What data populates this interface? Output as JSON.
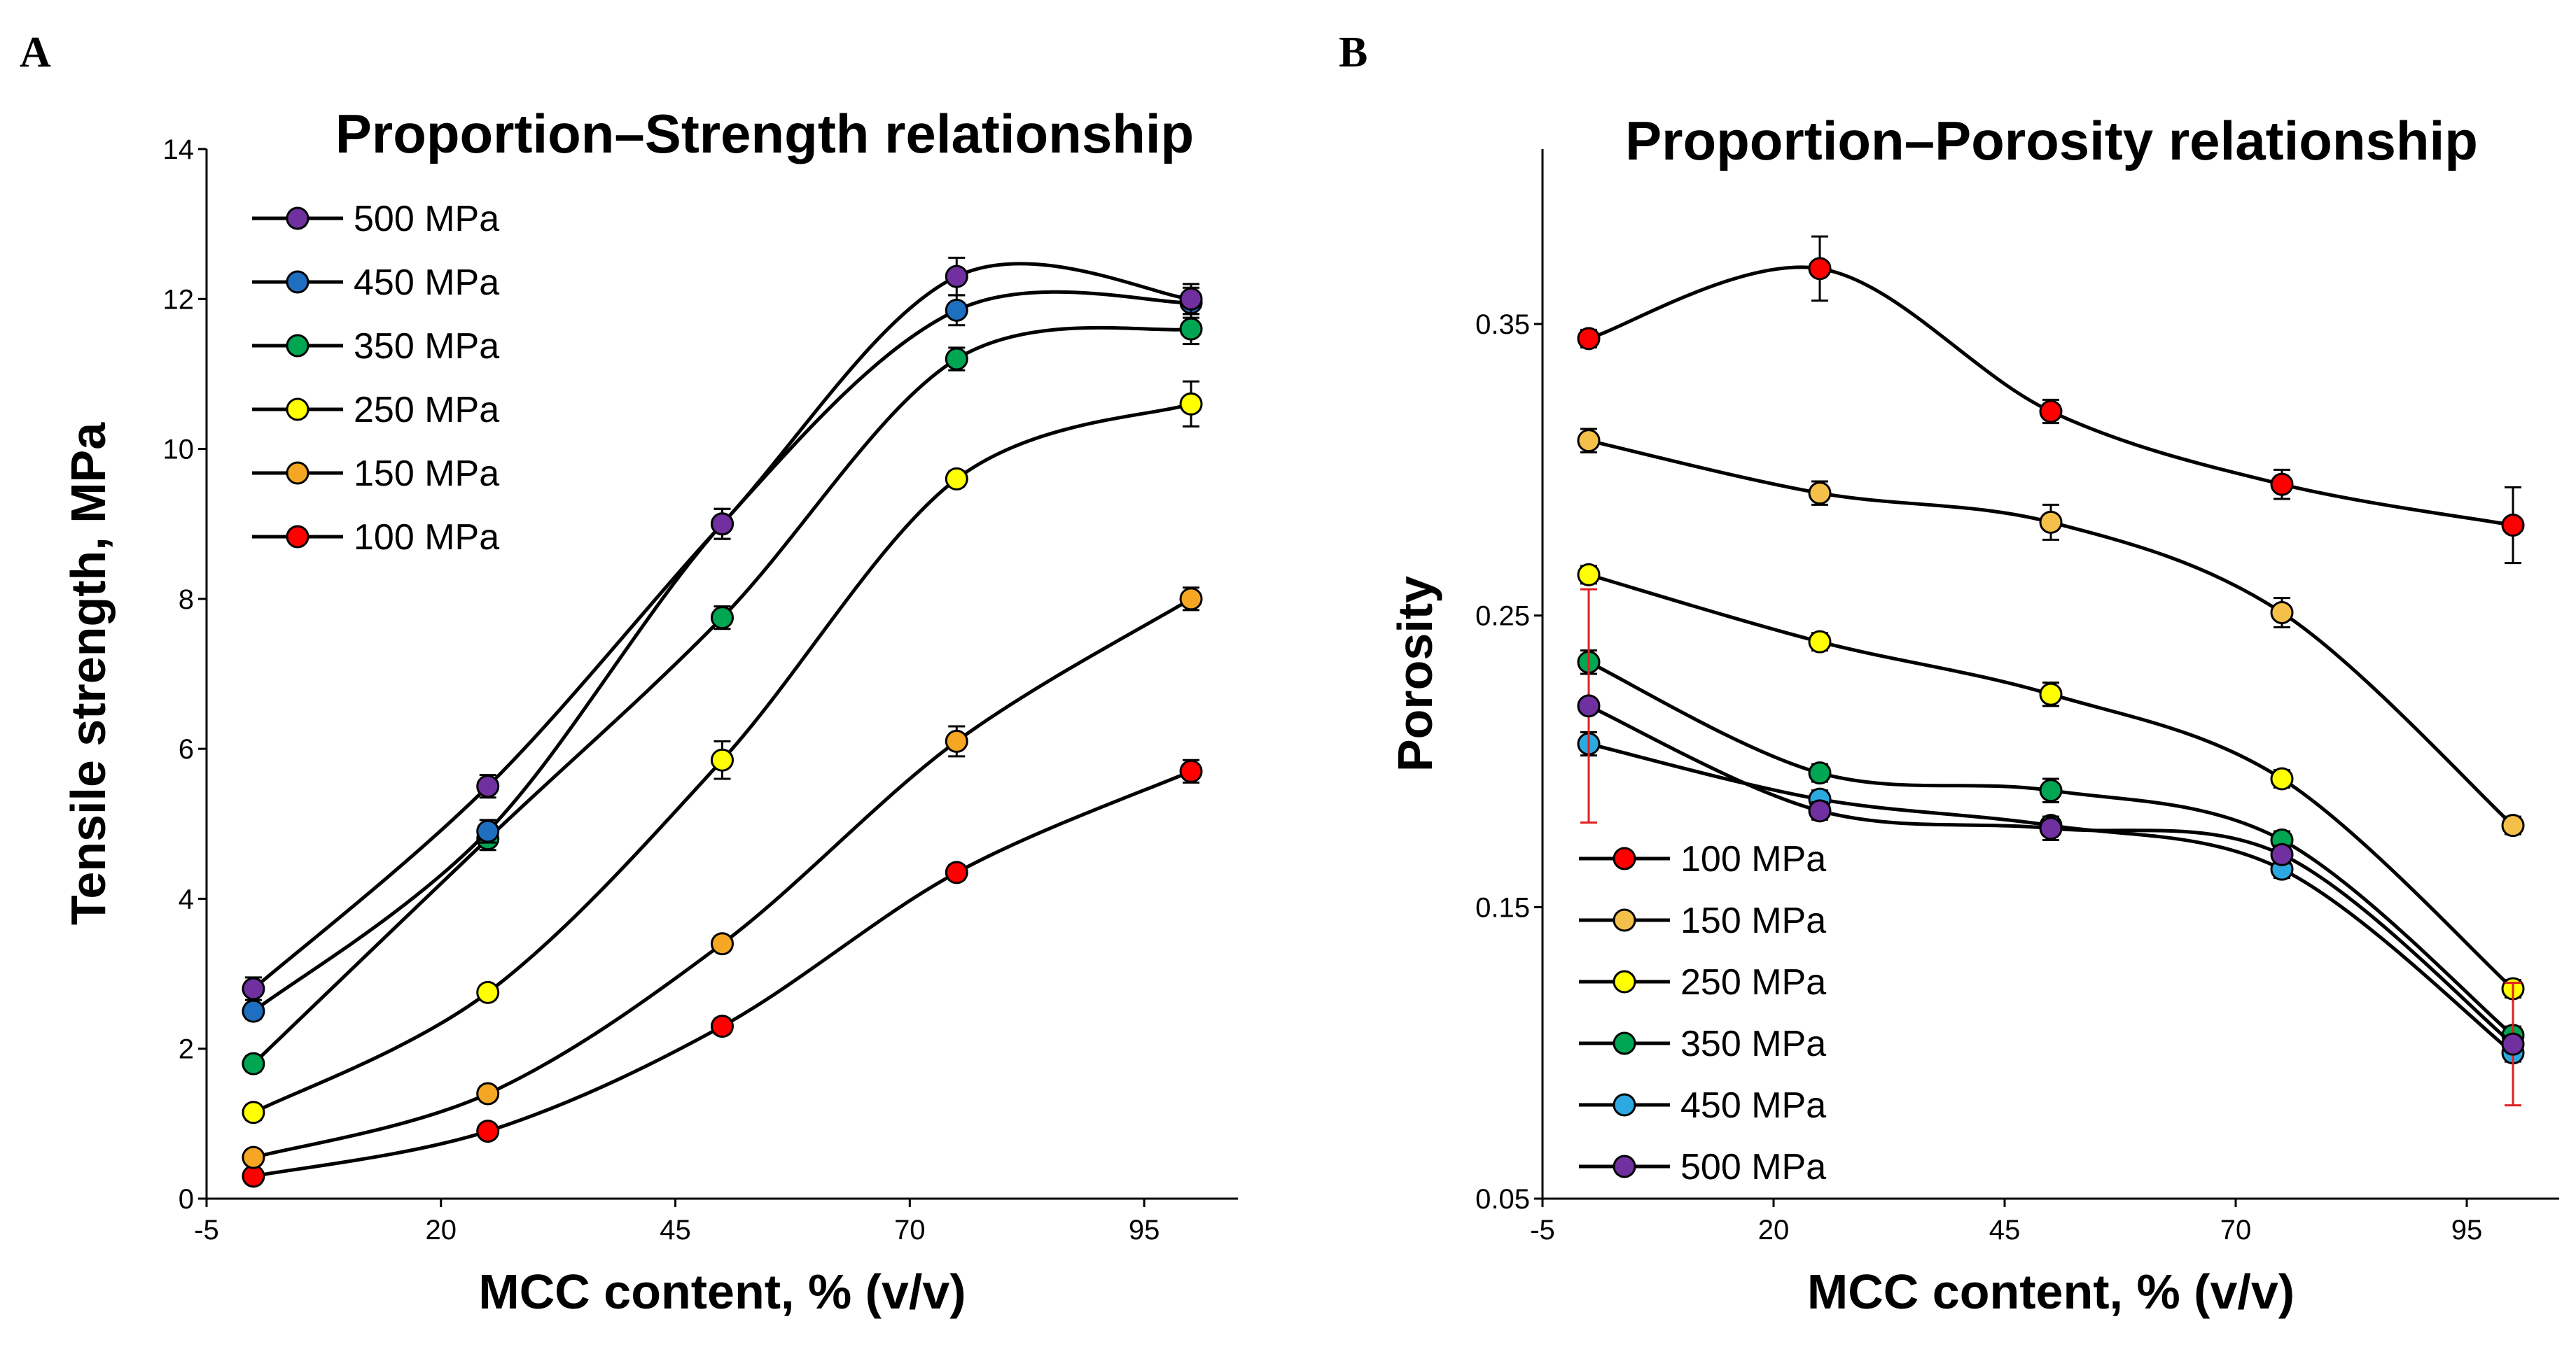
{
  "figure": {
    "panels": [
      "A",
      "B"
    ]
  },
  "chart_data": [
    {
      "type": "line",
      "panel": "A",
      "title": "Proportion–Strength  relationship",
      "xlabel": "MCC content, % (v/v)",
      "ylabel": "Tensile strength, MPa",
      "xlim": [
        -5,
        105
      ],
      "ylim": [
        0,
        14
      ],
      "xticks": [
        -5,
        20,
        45,
        70,
        95
      ],
      "yticks": [
        0,
        2,
        4,
        6,
        8,
        10,
        12,
        14
      ],
      "x": [
        0,
        25,
        50,
        75,
        100
      ],
      "legend_position": "top-left",
      "series": [
        {
          "name": "500 MPa",
          "color": "#7030A0",
          "values": [
            2.8,
            5.5,
            9.0,
            12.3,
            12.0
          ],
          "errors": [
            0.15,
            0.15,
            0.2,
            0.25,
            0.2
          ]
        },
        {
          "name": "450 MPa",
          "color": "#1F6FC1",
          "values": [
            2.5,
            4.9,
            9.0,
            11.85,
            11.95
          ],
          "errors": [
            0.1,
            0.15,
            0.2,
            0.2,
            0.2
          ]
        },
        {
          "name": "350 MPa",
          "color": "#00A651",
          "values": [
            1.8,
            4.8,
            7.75,
            11.2,
            11.6
          ],
          "errors": [
            0.1,
            0.15,
            0.15,
            0.15,
            0.2
          ]
        },
        {
          "name": "250 MPa",
          "color": "#FFFF00",
          "values": [
            1.15,
            2.75,
            5.85,
            9.6,
            10.6
          ],
          "errors": [
            0.1,
            0.1,
            0.25,
            0.1,
            0.3
          ]
        },
        {
          "name": "150 MPa",
          "color": "#F5A623",
          "values": [
            0.55,
            1.4,
            3.4,
            6.1,
            8.0
          ],
          "errors": [
            0.05,
            0.1,
            0.1,
            0.2,
            0.15
          ]
        },
        {
          "name": "100 MPa",
          "color": "#FF0000",
          "values": [
            0.3,
            0.9,
            2.3,
            4.35,
            5.7
          ],
          "errors": [
            0.05,
            0.05,
            0.1,
            0.1,
            0.15
          ]
        }
      ]
    },
    {
      "type": "line",
      "panel": "B",
      "title": "Proportion–Porosity  relationship",
      "xlabel": "MCC content, % (v/v)",
      "ylabel": "Porosity",
      "xlim": [
        -5,
        105
      ],
      "ylim": [
        0.05,
        0.41
      ],
      "xticks": [
        -5,
        20,
        45,
        70,
        95
      ],
      "yticks": [
        0.05,
        0.15,
        0.25,
        0.35
      ],
      "x": [
        0,
        25,
        50,
        75,
        100
      ],
      "legend_position": "bottom-left",
      "series": [
        {
          "name": "100 MPa",
          "color": "#FF0000",
          "values": [
            0.345,
            0.369,
            0.32,
            0.295,
            0.281
          ],
          "errors": [
            0.003,
            0.011,
            0.004,
            0.005,
            0.013
          ]
        },
        {
          "name": "150 MPa",
          "color": "#F5C04A",
          "values": [
            0.31,
            0.292,
            0.282,
            0.251,
            0.178
          ],
          "errors": [
            0.004,
            0.004,
            0.006,
            0.005,
            0.003
          ]
        },
        {
          "name": "250 MPa",
          "color": "#FFFF00",
          "values": [
            0.264,
            0.241,
            0.223,
            0.194,
            0.122
          ],
          "errors": [
            0.003,
            0.003,
            0.004,
            0.003,
            0.003
          ]
        },
        {
          "name": "350 MPa",
          "color": "#00A651",
          "values": [
            0.234,
            0.196,
            0.19,
            0.173,
            0.106
          ],
          "errors": [
            0.004,
            0.003,
            0.004,
            0.003,
            0.003
          ]
        },
        {
          "name": "450 MPa",
          "color": "#2CA9E1",
          "values": [
            0.206,
            0.187,
            0.178,
            0.163,
            0.1
          ],
          "errors": [
            0.004,
            0.003,
            0.003,
            0.003,
            0.003
          ]
        },
        {
          "name": "500 MPa",
          "color": "#7030A0",
          "values": [
            0.219,
            0.183,
            0.177,
            0.168,
            0.103
          ],
          "errors": [
            0.04,
            0.003,
            0.004,
            0.003,
            0.021
          ]
        }
      ]
    }
  ]
}
